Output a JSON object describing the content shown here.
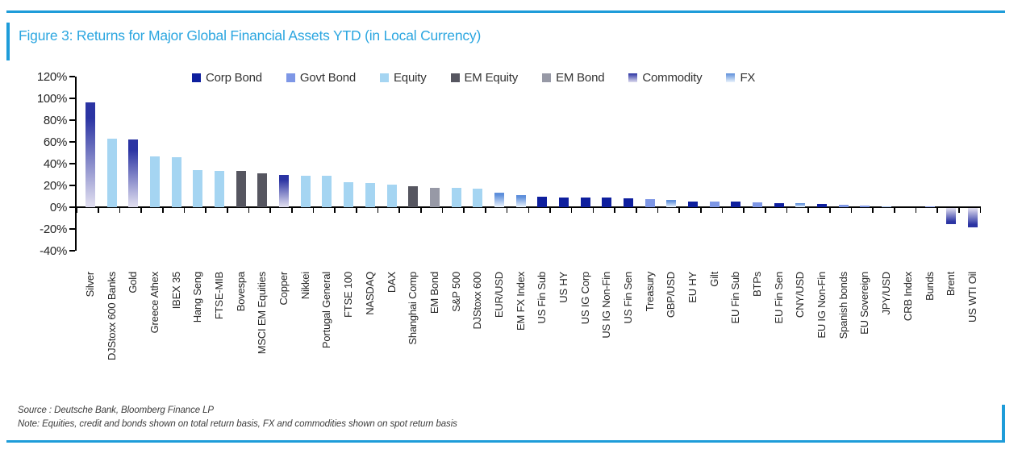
{
  "figure": {
    "title": "Figure 3: Returns for Major Global Financial Assets YTD (in Local Currency)",
    "source": "Source : Deutsche Bank, Bloomberg Finance LP",
    "note": "Note: Equities, credit and bonds shown on total return basis, FX and commodities shown on spot return basis",
    "accent_color": "#1E9CD9",
    "title_color": "#2BA6E0"
  },
  "chart_data": {
    "type": "bar",
    "title": "Figure 3: Returns for Major Global Financial Assets YTD (in Local Currency)",
    "xlabel": "",
    "ylabel": "",
    "ylim": [
      -40,
      120
    ],
    "ytick_step": 20,
    "ytick_suffix": "%",
    "yticks": [
      120,
      100,
      80,
      60,
      40,
      20,
      0,
      -20,
      -40
    ],
    "grid": false,
    "legend_position": "top",
    "legend": [
      "Corp Bond",
      "Govt Bond",
      "Equity",
      "EM Equity",
      "EM Bond",
      "Commodity",
      "FX"
    ],
    "group_styles": {
      "Corp Bond": {
        "type": "solid",
        "color": "#0E1F9E"
      },
      "Govt Bond": {
        "type": "solid",
        "color": "#7E97E6"
      },
      "Equity": {
        "type": "solid",
        "color": "#A5D5F2"
      },
      "EM Equity": {
        "type": "solid",
        "color": "#565660"
      },
      "EM Bond": {
        "type": "solid",
        "color": "#9799A6"
      },
      "Commodity": {
        "type": "gradient",
        "from": "#2B34A3",
        "to": "#DDDBEE"
      },
      "FX": {
        "type": "gradient",
        "from": "#5E8FDB",
        "to": "#E9F2FC"
      }
    },
    "points": [
      {
        "label": "Silver",
        "value": 96,
        "group": "Commodity"
      },
      {
        "label": "DJStoxx 600 Banks",
        "value": 63,
        "group": "Equity"
      },
      {
        "label": "Gold",
        "value": 62,
        "group": "Commodity"
      },
      {
        "label": "Greece Athex",
        "value": 47,
        "group": "Equity"
      },
      {
        "label": "IBEX 35",
        "value": 46,
        "group": "Equity"
      },
      {
        "label": "Hang Seng",
        "value": 34,
        "group": "Equity"
      },
      {
        "label": "FTSE-MIB",
        "value": 33,
        "group": "Equity"
      },
      {
        "label": "Bovespa",
        "value": 33,
        "group": "EM Equity"
      },
      {
        "label": "MSCI EM Equities",
        "value": 31,
        "group": "EM Equity"
      },
      {
        "label": "Copper",
        "value": 30,
        "group": "Commodity"
      },
      {
        "label": "Nikkei",
        "value": 29,
        "group": "Equity"
      },
      {
        "label": "Portugal General",
        "value": 29,
        "group": "Equity"
      },
      {
        "label": "FTSE 100",
        "value": 23,
        "group": "Equity"
      },
      {
        "label": "NASDAQ",
        "value": 22,
        "group": "Equity"
      },
      {
        "label": "DAX",
        "value": 21,
        "group": "Equity"
      },
      {
        "label": "Shanghai Comp",
        "value": 19,
        "group": "EM Equity"
      },
      {
        "label": "EM Bond",
        "value": 18,
        "group": "EM Bond"
      },
      {
        "label": "S&P 500",
        "value": 18,
        "group": "Equity"
      },
      {
        "label": "DJStoxx 600",
        "value": 17,
        "group": "Equity"
      },
      {
        "label": "EUR/USD",
        "value": 13,
        "group": "FX"
      },
      {
        "label": "EM FX Index",
        "value": 11,
        "group": "FX"
      },
      {
        "label": "US Fin Sub",
        "value": 10,
        "group": "Corp Bond"
      },
      {
        "label": "US HY",
        "value": 9,
        "group": "Corp Bond"
      },
      {
        "label": "US IG Corp",
        "value": 9,
        "group": "Corp Bond"
      },
      {
        "label": "US IG Non-Fin",
        "value": 9,
        "group": "Corp Bond"
      },
      {
        "label": "US Fin Sen",
        "value": 8.5,
        "group": "Corp Bond"
      },
      {
        "label": "Treasury",
        "value": 7.5,
        "group": "Govt Bond"
      },
      {
        "label": "GBP/USD",
        "value": 6.5,
        "group": "FX"
      },
      {
        "label": "EU HY",
        "value": 5.5,
        "group": "Corp Bond"
      },
      {
        "label": "Gilt",
        "value": 5.5,
        "group": "Govt Bond"
      },
      {
        "label": "EU Fin Sub",
        "value": 5,
        "group": "Corp Bond"
      },
      {
        "label": "BTPs",
        "value": 4.5,
        "group": "Govt Bond"
      },
      {
        "label": "EU Fin Sen",
        "value": 4,
        "group": "Corp Bond"
      },
      {
        "label": "CNY/USD",
        "value": 4,
        "group": "FX"
      },
      {
        "label": "EU IG Non-Fin",
        "value": 3,
        "group": "Corp Bond"
      },
      {
        "label": "Spanish bonds",
        "value": 2.5,
        "group": "Govt Bond"
      },
      {
        "label": "EU Sovereign",
        "value": 1.5,
        "group": "Govt Bond"
      },
      {
        "label": "JPY/USD",
        "value": 1,
        "group": "FX"
      },
      {
        "label": "CRB Index",
        "value": 0.3,
        "group": "Commodity"
      },
      {
        "label": "Bunds",
        "value": 0.5,
        "group": "Govt Bond"
      },
      {
        "label": "Brent",
        "value": -15,
        "group": "Commodity"
      },
      {
        "label": "US WTI Oil",
        "value": -18,
        "group": "Commodity"
      }
    ]
  }
}
